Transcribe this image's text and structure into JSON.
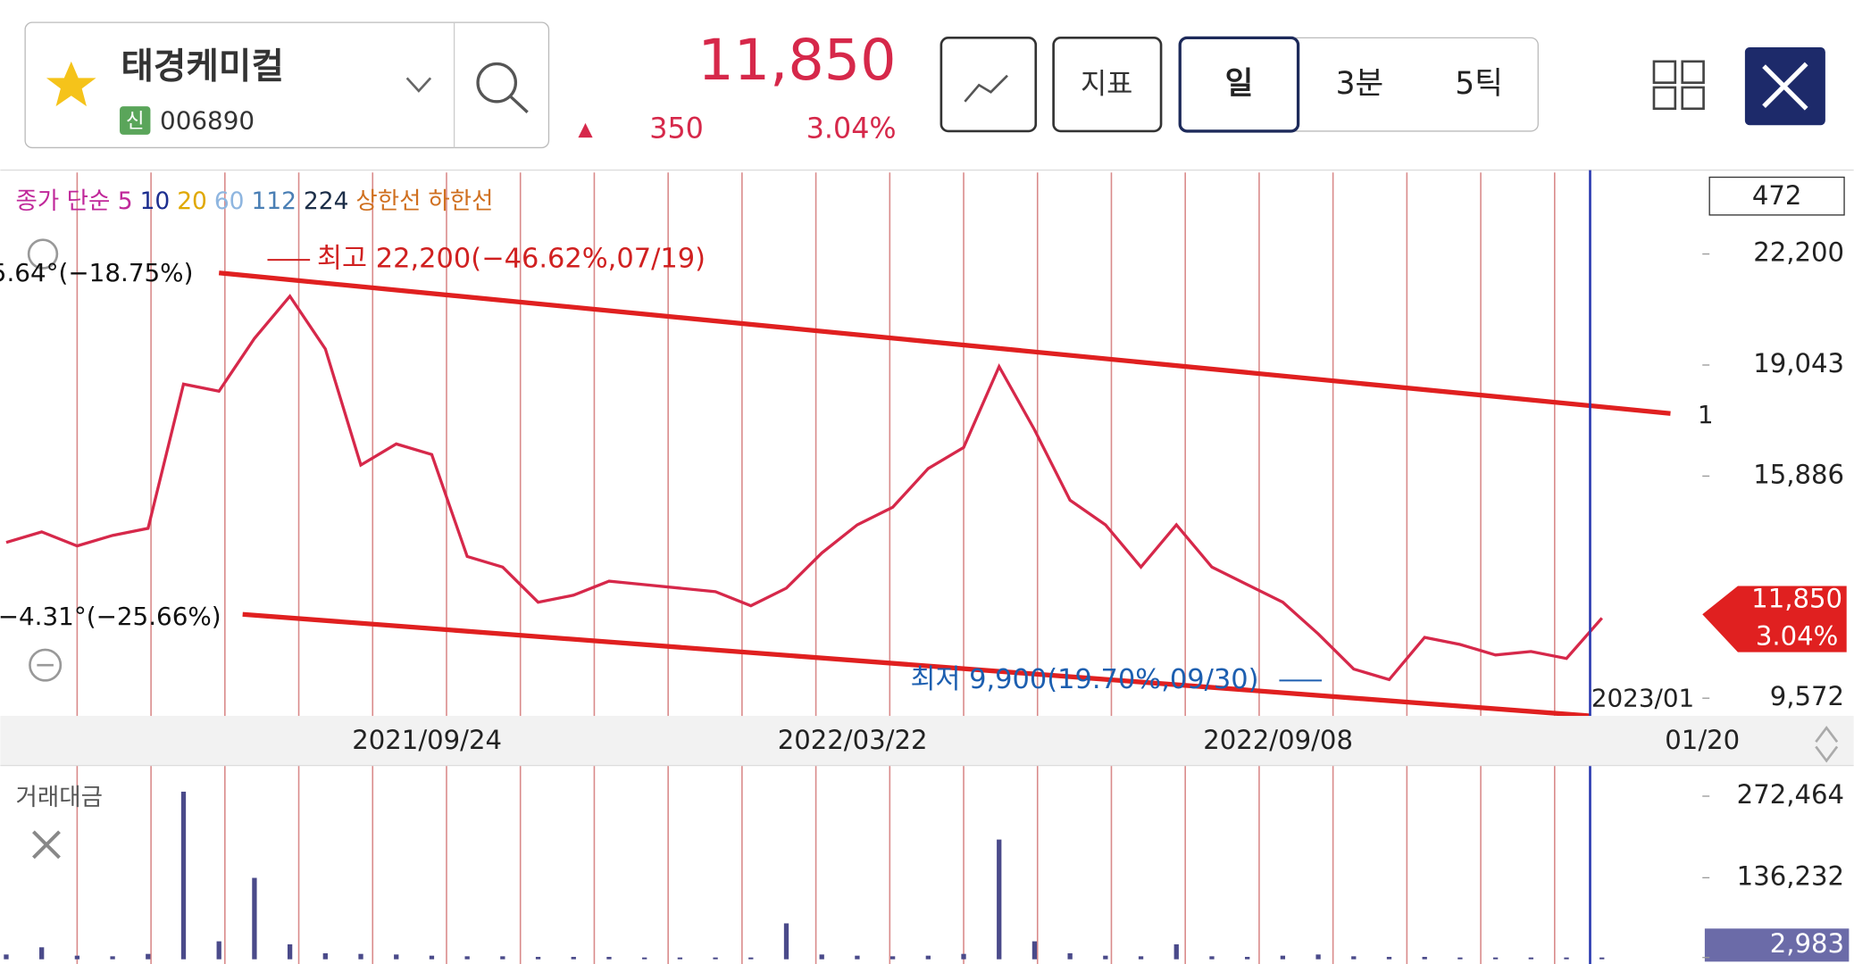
{
  "header": {
    "stock_name": "태경케미컬",
    "badge": "신",
    "code": "006890",
    "price": "11,850",
    "arrow": "▲",
    "change": "350",
    "change_pct": "3.04%"
  },
  "toolbar": {
    "indicator": "지표",
    "periods": [
      "일",
      "3분",
      "5틱"
    ]
  },
  "chart_data": {
    "type": "line",
    "color": "#d6284a",
    "legend": [
      {
        "label": "종가 단순 5",
        "color": "#c0289a"
      },
      {
        "label": "10",
        "color": "#1d2f8f"
      },
      {
        "label": "20",
        "color": "#e0a800"
      },
      {
        "label": "60",
        "color": "#8fb6e0"
      },
      {
        "label": "112",
        "color": "#4a7fb5"
      },
      {
        "label": "224",
        "color": "#1c2e48"
      },
      {
        "label": "상한선",
        "color": "#d07020"
      },
      {
        "label": "하한선",
        "color": "#d07020"
      }
    ],
    "values": [
      14000,
      14300,
      13900,
      14200,
      14400,
      18500,
      18300,
      19800,
      21000,
      19500,
      16200,
      16800,
      16500,
      13600,
      13300,
      12300,
      12500,
      12900,
      12800,
      12700,
      12600,
      12200,
      12700,
      13700,
      14500,
      15000,
      16100,
      16700,
      19000,
      17200,
      15200,
      14500,
      13300,
      14500,
      13300,
      12800,
      12300,
      11400,
      10400,
      10100,
      11300,
      11100,
      10800,
      10900,
      10700,
      11850
    ],
    "ylim": [
      9068,
      24450
    ],
    "yticks": [
      {
        "value": 22200,
        "label": "22,200"
      },
      {
        "value": 19043,
        "label": "19,043"
      },
      {
        "value": 15886,
        "label": "15,886"
      },
      {
        "value": 9572,
        "label": "9,572"
      }
    ],
    "x_labels": [
      "2021/09/24",
      "2022/03/22",
      "2022/09/08",
      "01/20"
    ],
    "top_box": "472",
    "last_price": "11,850",
    "last_pct": "3.04%",
    "end_date": "2023/01",
    "cut_label": "1",
    "annotations": {
      "high": "최고 22,200(−46.62%,07/19)",
      "low": "최저 9,900(19.70%,09/30)",
      "upper_line": "5.64°(−18.75%)",
      "lower_line": "−4.31°(−25.66%)"
    },
    "volume": {
      "label": "거래대금",
      "color": "#4a4a8a",
      "ylim": [
        0,
        300000
      ],
      "yticks": [
        {
          "value": 272464,
          "label": "272,464"
        },
        {
          "value": 136232,
          "label": "136,232"
        },
        {
          "value": 2983,
          "label": "2,983"
        }
      ],
      "values": [
        8000,
        20000,
        6000,
        5000,
        9000,
        280000,
        30000,
        136000,
        25000,
        10000,
        9000,
        8000,
        6000,
        5000,
        5000,
        4000,
        4000,
        4000,
        3000,
        3000,
        3000,
        3000,
        60000,
        8000,
        6000,
        5000,
        6000,
        9000,
        200000,
        30000,
        10000,
        6000,
        5000,
        25000,
        5000,
        4000,
        6000,
        8000,
        5000,
        4000,
        4000,
        3000,
        3000,
        3000,
        3000,
        2983
      ]
    }
  }
}
